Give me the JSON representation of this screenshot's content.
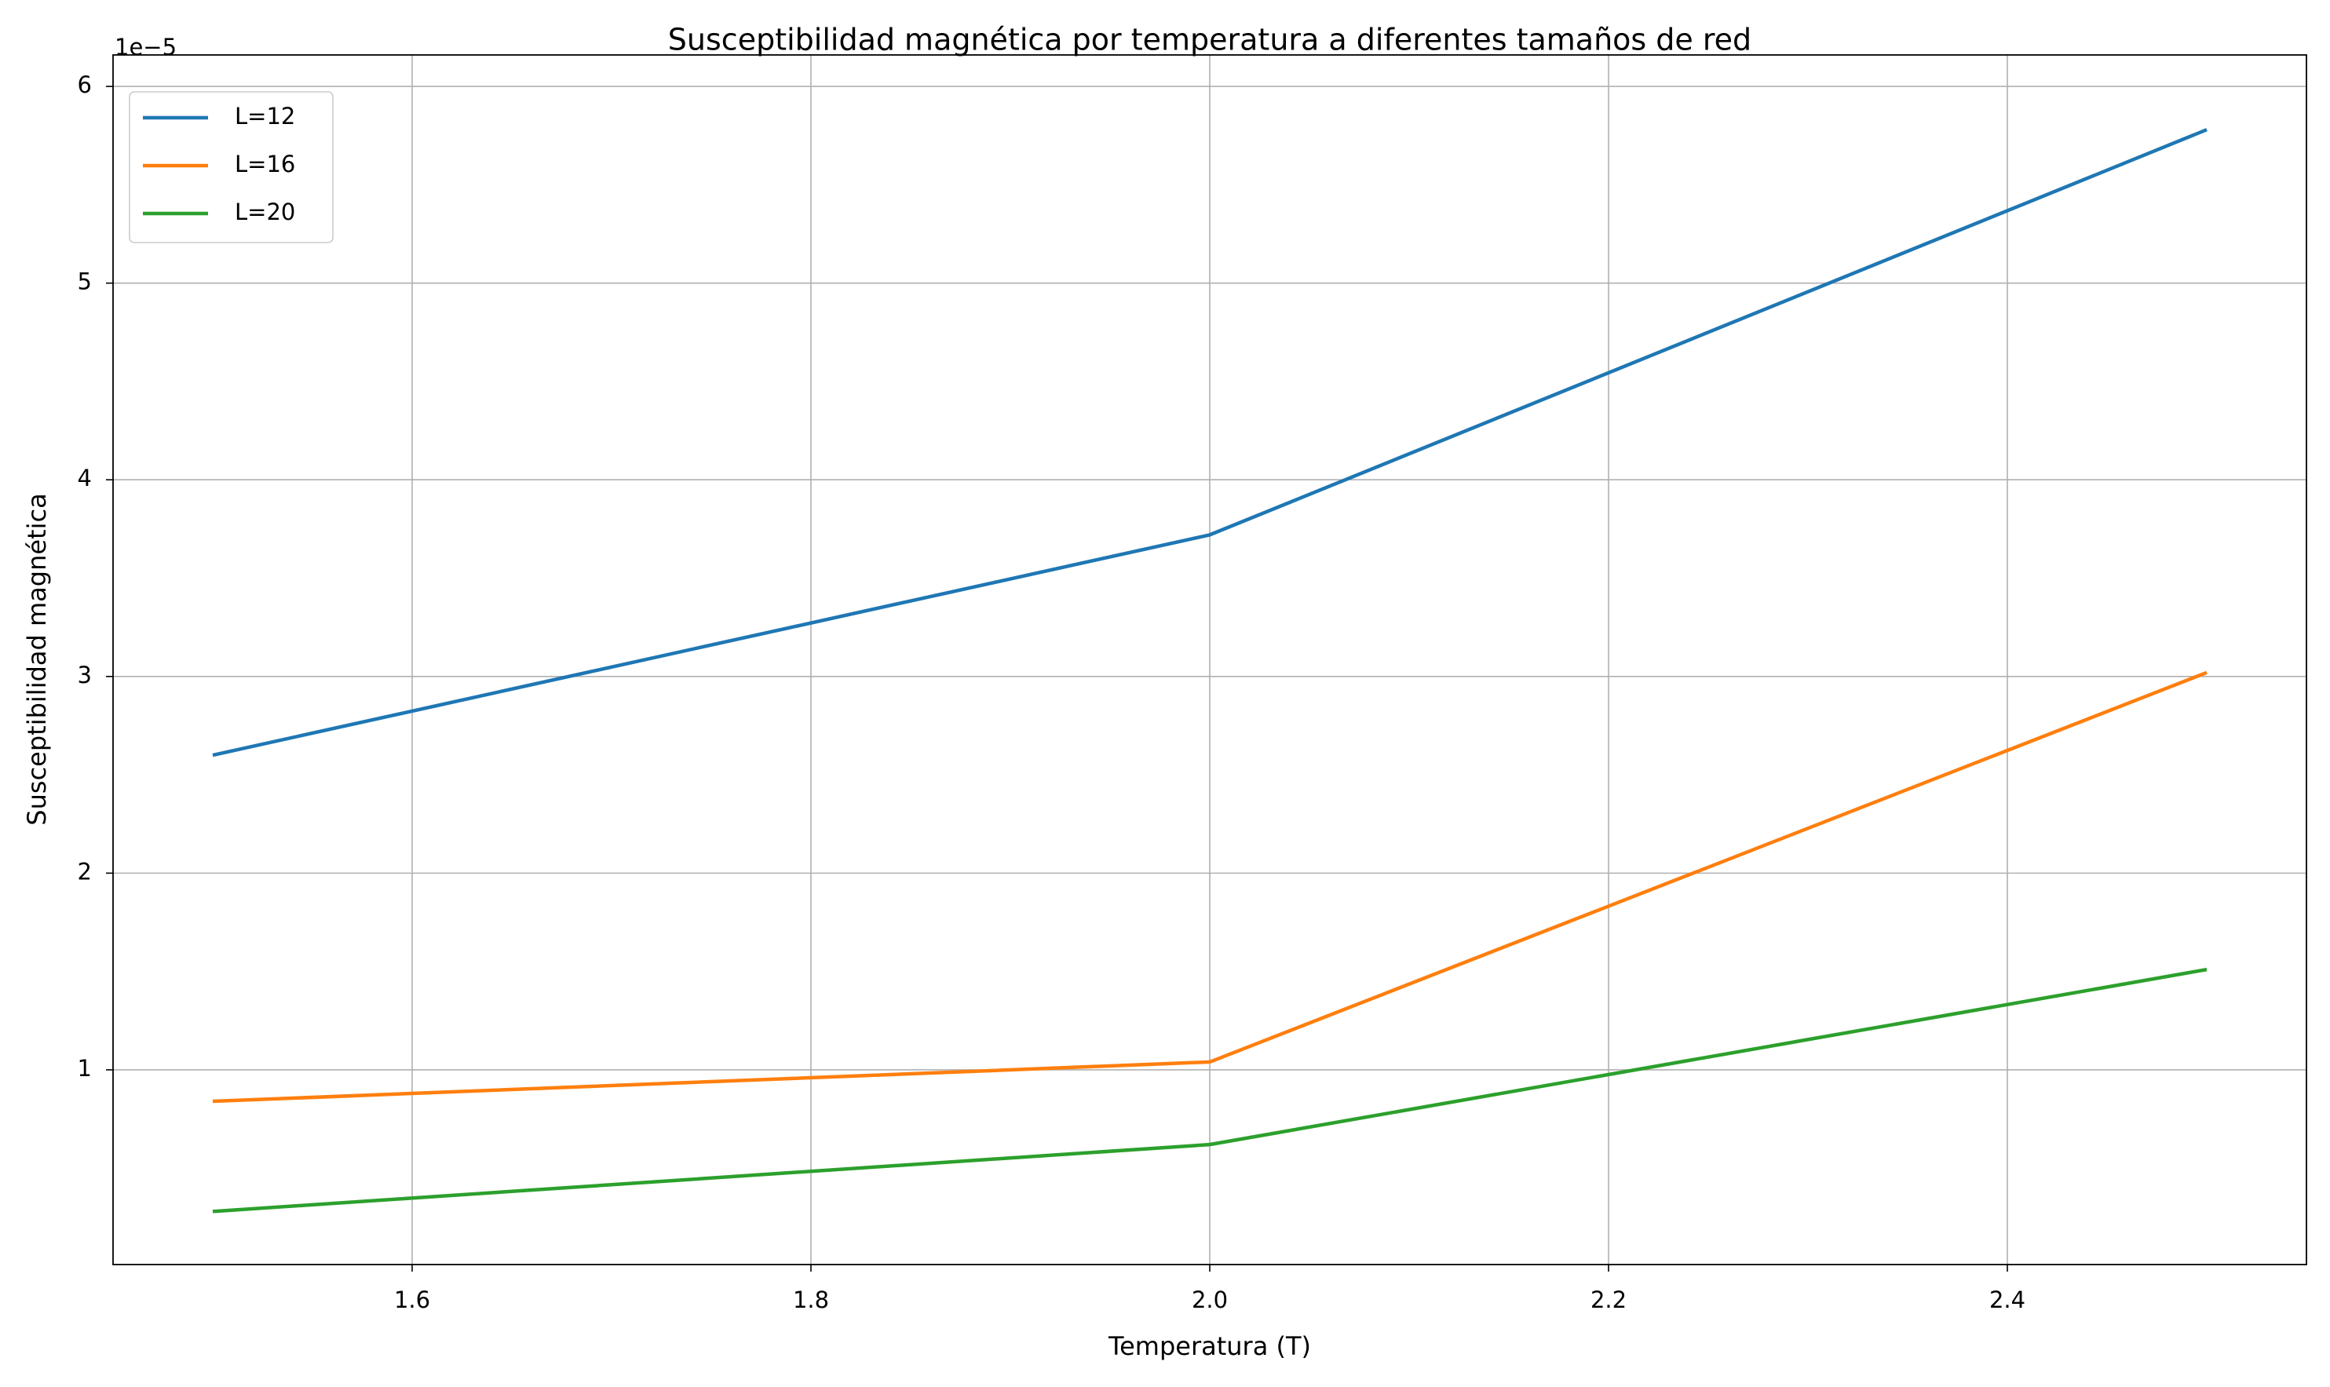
{
  "chart_data": {
    "type": "line",
    "title": "Susceptibilidad magnética por temperatura a diferentes tamaños de red",
    "x_label": "Temperatura (T)",
    "y_label": "Susceptibilidad magnética",
    "y_offset_label": "1e−5",
    "x": [
      1.5,
      2.0,
      2.5
    ],
    "series": [
      {
        "name": "L=12",
        "color": "#1f77b4",
        "values": [
          2.6,
          3.72,
          5.78
        ]
      },
      {
        "name": "L=16",
        "color": "#ff7f0e",
        "values": [
          0.84,
          1.04,
          3.02
        ]
      },
      {
        "name": "L=20",
        "color": "#2ca02c",
        "values": [
          0.28,
          0.62,
          1.51
        ]
      }
    ],
    "xlim": [
      1.45,
      2.55
    ],
    "ylim": [
      0.01,
      6.16
    ],
    "xticks": [
      1.6,
      1.8,
      {
        "value": 2.0,
        "label": "2.0"
      },
      2.2,
      2.4
    ],
    "yticks": [
      1,
      2,
      3,
      4,
      5,
      6
    ],
    "grid": true,
    "legend": "upper left"
  }
}
